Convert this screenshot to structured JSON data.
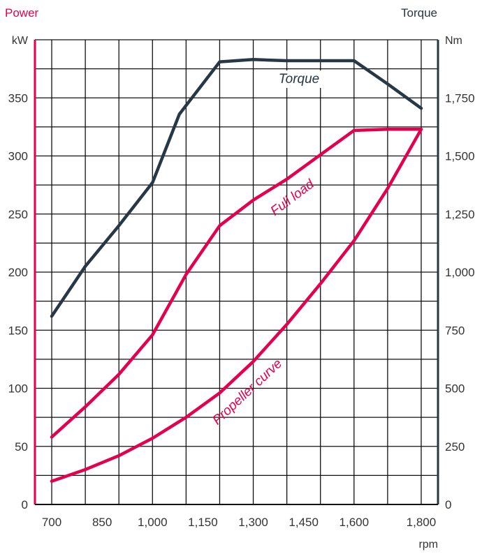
{
  "chart_data": {
    "type": "line",
    "left_axis_title": "Power",
    "right_axis_title": "Torque",
    "left_unit": "kW",
    "right_unit": "Nm",
    "xlabel": "rpm",
    "x_tick_labels": [
      "700",
      "850",
      "1,000",
      "1,150",
      "1,300",
      "1,450",
      "1,600",
      "1,800"
    ],
    "y_left_ticks": [
      "0",
      "50",
      "100",
      "150",
      "200",
      "250",
      "300",
      "350"
    ],
    "y_right_ticks": [
      "0",
      "250",
      "500",
      "750",
      "1,000",
      "1,250",
      "1,500",
      "1,750"
    ],
    "y_left_range": [
      0,
      400
    ],
    "y_right_range": [
      0,
      2000
    ],
    "grid": true,
    "colors": {
      "power": "#e3004f",
      "torque": "#263746",
      "grid": "#111111"
    },
    "series": [
      {
        "name": "Torque",
        "axis": "right",
        "color": "#263746",
        "points": [
          [
            700,
            810
          ],
          [
            800,
            1025
          ],
          [
            900,
            1200
          ],
          [
            1000,
            1385
          ],
          [
            1080,
            1680
          ],
          [
            1200,
            1905
          ],
          [
            1300,
            1915
          ],
          [
            1400,
            1910
          ],
          [
            1500,
            1910
          ],
          [
            1600,
            1910
          ],
          [
            1700,
            1810
          ],
          [
            1800,
            1705
          ]
        ]
      },
      {
        "name": "Full load",
        "axis": "left",
        "color": "#e3004f",
        "points": [
          [
            700,
            58
          ],
          [
            800,
            84
          ],
          [
            900,
            112
          ],
          [
            1000,
            146
          ],
          [
            1100,
            198
          ],
          [
            1200,
            240
          ],
          [
            1300,
            262
          ],
          [
            1400,
            280
          ],
          [
            1500,
            301
          ],
          [
            1600,
            322
          ],
          [
            1700,
            323
          ],
          [
            1800,
            323
          ]
        ]
      },
      {
        "name": "Propeller curve",
        "axis": "left",
        "color": "#e3004f",
        "points": [
          [
            700,
            20
          ],
          [
            800,
            30
          ],
          [
            900,
            42
          ],
          [
            1000,
            57
          ],
          [
            1100,
            75
          ],
          [
            1200,
            96
          ],
          [
            1300,
            123
          ],
          [
            1400,
            155
          ],
          [
            1500,
            190
          ],
          [
            1600,
            227
          ],
          [
            1700,
            272
          ],
          [
            1800,
            323
          ]
        ]
      }
    ]
  }
}
